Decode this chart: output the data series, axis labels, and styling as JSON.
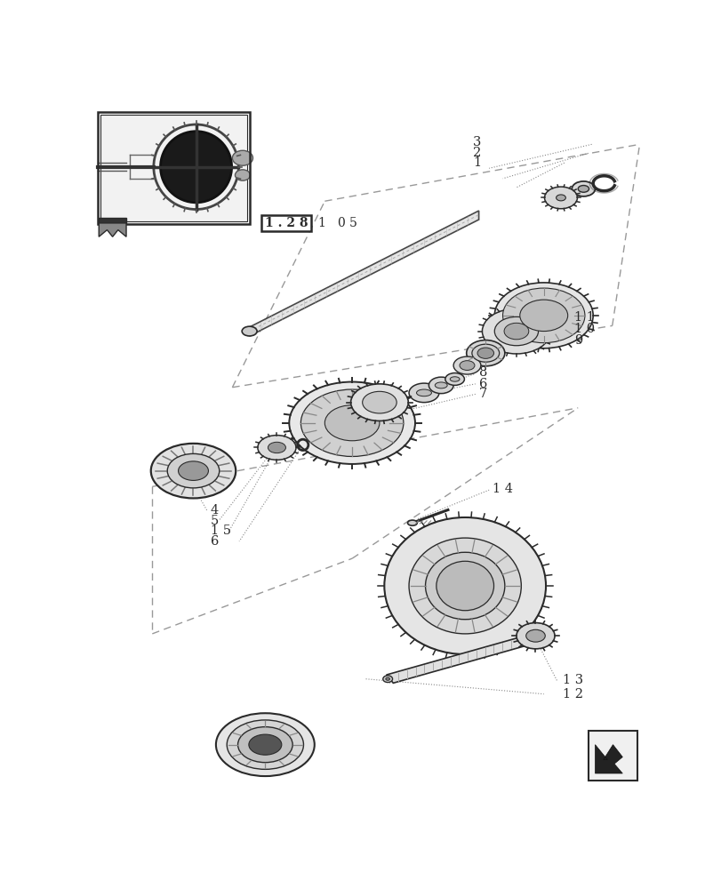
{
  "bg_color": "#ffffff",
  "lc": "#2a2a2a",
  "dc": "#888888",
  "gc": "#e8e8e8",
  "gc2": "#d0d0d0",
  "gc3": "#b8b8b8"
}
